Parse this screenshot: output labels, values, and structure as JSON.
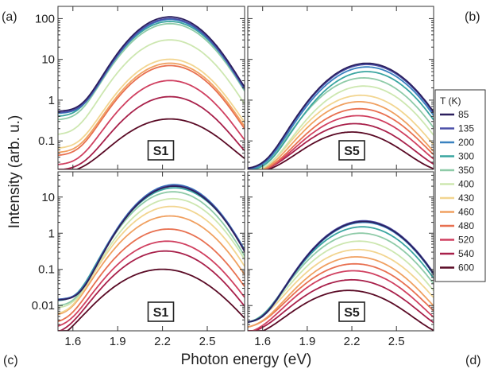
{
  "chart_data": {
    "type": "line",
    "xlabel": "Photon energy (eV)",
    "ylabel": "Intensity (arb. u.)",
    "y_scale": "log",
    "x_ticks": [
      "1.6",
      "1.9",
      "2.2",
      "2.5"
    ],
    "xlim": [
      1.5,
      2.75
    ],
    "panel_letters": [
      "(a)",
      "(b)",
      "(c)",
      "(d)"
    ],
    "legend": {
      "title": "T (K)",
      "placement": "right",
      "entries": [
        "85",
        "135",
        "200",
        "300",
        "350",
        "400",
        "430",
        "460",
        "480",
        "520",
        "540",
        "600"
      ],
      "colors": [
        "#2b1f5e",
        "#4a4fa8",
        "#3a82c0",
        "#3aa5a0",
        "#8fcba8",
        "#cde7b0",
        "#f2d590",
        "#f0a060",
        "#e87050",
        "#d04060",
        "#a8204a",
        "#5a0a25"
      ]
    },
    "panels": [
      {
        "letter": "(a)",
        "sample": "S1",
        "ylim": [
          0.02,
          200
        ],
        "y_ticks": [
          {
            "v": 0.1,
            "t": "0.1"
          },
          {
            "v": 1,
            "t": "1"
          },
          {
            "v": 10,
            "t": "10"
          },
          {
            "v": 100,
            "t": "100"
          }
        ],
        "series": [
          {
            "T": "85",
            "peak": 110,
            "center": 2.25,
            "width": 0.36,
            "floor": 0.6
          },
          {
            "T": "135",
            "peak": 100,
            "center": 2.25,
            "width": 0.36,
            "floor": 0.6
          },
          {
            "T": "200",
            "peak": 95,
            "center": 2.25,
            "width": 0.36,
            "floor": 0.6
          },
          {
            "T": "300",
            "peak": 85,
            "center": 2.25,
            "width": 0.37,
            "floor": 0.55
          },
          {
            "T": "350",
            "peak": 75,
            "center": 2.25,
            "width": 0.37,
            "floor": 0.5
          },
          {
            "T": "400",
            "peak": 30,
            "center": 2.25,
            "width": 0.38,
            "floor": 0.4
          },
          {
            "T": "430",
            "peak": 10,
            "center": 2.25,
            "width": 0.38,
            "floor": 0.3
          },
          {
            "T": "460",
            "peak": 8,
            "center": 2.25,
            "width": 0.38,
            "floor": 0.25
          },
          {
            "T": "480",
            "peak": 7,
            "center": 2.25,
            "width": 0.38,
            "floor": 0.22
          },
          {
            "T": "520",
            "peak": 3,
            "center": 2.25,
            "width": 0.39,
            "floor": 0.15
          },
          {
            "T": "540",
            "peak": 1.2,
            "center": 2.25,
            "width": 0.4,
            "floor": 0.12
          },
          {
            "T": "600",
            "peak": 0.33,
            "center": 2.25,
            "width": 0.45,
            "floor": 0.1
          }
        ]
      },
      {
        "letter": "(b)",
        "sample": "S5",
        "ylim": [
          0.02,
          200
        ],
        "y_ticks": [],
        "series": [
          {
            "T": "85",
            "peak": 8,
            "center": 2.3,
            "width": 0.4,
            "floor": 0.1
          },
          {
            "T": "135",
            "peak": 7.5,
            "center": 2.3,
            "width": 0.4,
            "floor": 0.1
          },
          {
            "T": "200",
            "peak": 6.5,
            "center": 2.3,
            "width": 0.4,
            "floor": 0.1
          },
          {
            "T": "300",
            "peak": 5,
            "center": 2.3,
            "width": 0.4,
            "floor": 0.1
          },
          {
            "T": "350",
            "peak": 3.5,
            "center": 2.28,
            "width": 0.41,
            "floor": 0.1
          },
          {
            "T": "400",
            "peak": 2.2,
            "center": 2.28,
            "width": 0.41,
            "floor": 0.1
          },
          {
            "T": "430",
            "peak": 1.3,
            "center": 2.26,
            "width": 0.42,
            "floor": 0.1
          },
          {
            "T": "460",
            "peak": 0.9,
            "center": 2.25,
            "width": 0.42,
            "floor": 0.1
          },
          {
            "T": "480",
            "peak": 0.6,
            "center": 2.25,
            "width": 0.43,
            "floor": 0.1
          },
          {
            "T": "520",
            "peak": 0.4,
            "center": 2.24,
            "width": 0.44,
            "floor": 0.1
          },
          {
            "T": "540",
            "peak": 0.25,
            "center": 2.22,
            "width": 0.45,
            "floor": 0.1
          },
          {
            "T": "600",
            "peak": 0.15,
            "center": 2.2,
            "width": 0.45,
            "floor": 0.1
          }
        ]
      },
      {
        "letter": "(c)",
        "sample": "S1",
        "ylim": [
          0.002,
          50
        ],
        "y_ticks": [
          {
            "v": 0.01,
            "t": "0.01"
          },
          {
            "v": 0.1,
            "t": "0.1"
          },
          {
            "v": 1,
            "t": "1"
          },
          {
            "v": 10,
            "t": "10"
          }
        ],
        "series": [
          {
            "T": "85",
            "peak": 20,
            "center": 2.28,
            "width": 0.34,
            "floor": 0.05
          },
          {
            "T": "135",
            "peak": 21,
            "center": 2.28,
            "width": 0.34,
            "floor": 0.05
          },
          {
            "T": "200",
            "peak": 22,
            "center": 2.28,
            "width": 0.34,
            "floor": 0.05
          },
          {
            "T": "300",
            "peak": 18,
            "center": 2.28,
            "width": 0.35,
            "floor": 0.05
          },
          {
            "T": "350",
            "peak": 14,
            "center": 2.27,
            "width": 0.35,
            "floor": 0.04
          },
          {
            "T": "400",
            "peak": 9,
            "center": 2.27,
            "width": 0.36,
            "floor": 0.04
          },
          {
            "T": "430",
            "peak": 5.5,
            "center": 2.26,
            "width": 0.37,
            "floor": 0.03
          },
          {
            "T": "460",
            "peak": 3,
            "center": 2.25,
            "width": 0.38,
            "floor": 0.03
          },
          {
            "T": "480",
            "peak": 1.3,
            "center": 2.24,
            "width": 0.39,
            "floor": 0.02
          },
          {
            "T": "520",
            "peak": 0.6,
            "center": 2.23,
            "width": 0.4,
            "floor": 0.015
          },
          {
            "T": "540",
            "peak": 0.32,
            "center": 2.22,
            "width": 0.41,
            "floor": 0.01
          },
          {
            "T": "600",
            "peak": 0.1,
            "center": 2.2,
            "width": 0.45,
            "floor": 0.005
          }
        ]
      },
      {
        "letter": "(d)",
        "sample": "S5",
        "ylim": [
          0.002,
          50
        ],
        "y_ticks": [],
        "series": [
          {
            "T": "85",
            "peak": 2.1,
            "center": 2.28,
            "width": 0.38,
            "floor": 0.02
          },
          {
            "T": "135",
            "peak": 2.2,
            "center": 2.28,
            "width": 0.38,
            "floor": 0.02
          },
          {
            "T": "200",
            "peak": 2.0,
            "center": 2.28,
            "width": 0.38,
            "floor": 0.02
          },
          {
            "T": "300",
            "peak": 1.5,
            "center": 2.27,
            "width": 0.39,
            "floor": 0.02
          },
          {
            "T": "350",
            "peak": 1.0,
            "center": 2.26,
            "width": 0.4,
            "floor": 0.02
          },
          {
            "T": "400",
            "peak": 0.6,
            "center": 2.25,
            "width": 0.41,
            "floor": 0.02
          },
          {
            "T": "430",
            "peak": 0.35,
            "center": 2.24,
            "width": 0.42,
            "floor": 0.02
          },
          {
            "T": "460",
            "peak": 0.22,
            "center": 2.23,
            "width": 0.42,
            "floor": 0.015
          },
          {
            "T": "480",
            "peak": 0.14,
            "center": 2.22,
            "width": 0.43,
            "floor": 0.015
          },
          {
            "T": "520",
            "peak": 0.09,
            "center": 2.21,
            "width": 0.44,
            "floor": 0.01
          },
          {
            "T": "540",
            "peak": 0.05,
            "center": 2.2,
            "width": 0.45,
            "floor": 0.01
          },
          {
            "T": "600",
            "peak": 0.025,
            "center": 2.18,
            "width": 0.46,
            "floor": 0.008
          }
        ]
      }
    ]
  }
}
